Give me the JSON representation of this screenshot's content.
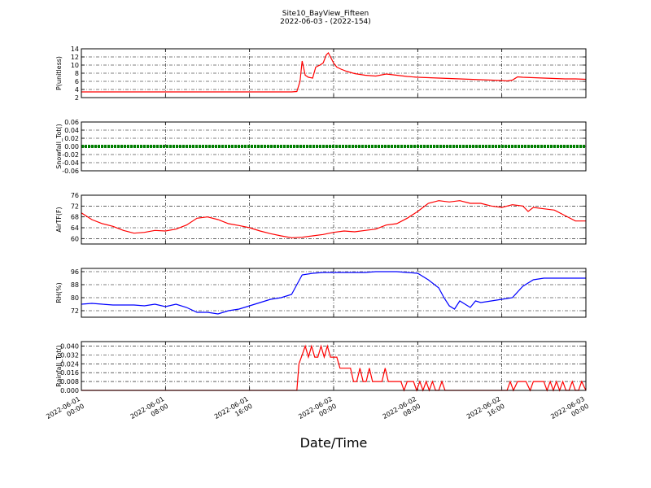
{
  "figure": {
    "title": "Site10_BayView_Fifteen",
    "subtitle": "2022-06-03 - (2022-154)",
    "xlabel": "Date/Time"
  },
  "chart_data": [
    {
      "type": "line",
      "ylabel": "P(unitless)",
      "color": "#ff0000",
      "ylim": [
        2,
        14
      ],
      "yticks": [
        "2",
        "4",
        "6",
        "8",
        "10",
        "12",
        "14"
      ],
      "xlim_hours": [
        0,
        48
      ],
      "x_hours": [
        0,
        10,
        20,
        20.5,
        20.8,
        21.0,
        21.3,
        21.6,
        22.0,
        22.3,
        22.7,
        23.0,
        23.3,
        23.5,
        23.8,
        24.0,
        24.3,
        24.7,
        25.2,
        26,
        27,
        28,
        29,
        30,
        31,
        32,
        33,
        34,
        35,
        36,
        37,
        38,
        39,
        40,
        40.5,
        41.0,
        41.5,
        42,
        43,
        44,
        45,
        46,
        47,
        48
      ],
      "y": [
        3.4,
        3.4,
        3.4,
        3.5,
        6.0,
        11.0,
        7.5,
        7.0,
        6.8,
        9.5,
        10.0,
        10.5,
        12.5,
        13.0,
        11.5,
        10.5,
        9.5,
        9.0,
        8.5,
        7.9,
        7.5,
        7.3,
        7.8,
        7.5,
        7.2,
        7.0,
        6.9,
        6.8,
        6.7,
        6.6,
        6.5,
        6.4,
        6.3,
        6.2,
        6.1,
        6.3,
        7.1,
        7.0,
        6.9,
        6.8,
        6.7,
        6.6,
        6.6,
        6.5
      ]
    },
    {
      "type": "line",
      "ylabel": "Snowfall_Tot()",
      "color": "#008000",
      "ylim": [
        -0.06,
        0.06
      ],
      "yticks": [
        "-0.06",
        "-0.04",
        "-0.02",
        "0.00",
        "0.02",
        "0.04",
        "0.06"
      ],
      "xlim_hours": [
        0,
        48
      ],
      "x_hours": [
        0,
        48
      ],
      "y": [
        0,
        0
      ]
    },
    {
      "type": "line",
      "ylabel": "AirTF(F)",
      "color": "#ff0000",
      "ylim": [
        58,
        76
      ],
      "yticks": [
        "60",
        "64",
        "68",
        "72",
        "76"
      ],
      "xlim_hours": [
        0,
        48
      ],
      "x_hours": [
        0,
        1,
        2,
        3,
        4,
        5,
        6,
        7,
        8,
        9,
        10,
        11,
        12,
        13,
        14,
        15,
        16,
        17,
        18,
        19,
        20,
        21,
        22,
        23,
        24,
        25,
        26,
        27,
        28,
        29,
        30,
        31,
        32,
        33,
        34,
        35,
        36,
        37,
        38,
        39,
        40,
        41,
        42,
        42.5,
        43,
        44,
        45,
        46,
        47,
        48
      ],
      "y": [
        69.5,
        67,
        65.5,
        64.5,
        63,
        62,
        62.3,
        63,
        62.8,
        63.5,
        65,
        67.5,
        68,
        67,
        65.5,
        64.8,
        64,
        62.8,
        61.8,
        61,
        60.3,
        60.5,
        61,
        61.5,
        62.3,
        62.8,
        62.5,
        63,
        63.5,
        65,
        65.5,
        67.5,
        70,
        73,
        74,
        73.5,
        74,
        73,
        73,
        72,
        71.5,
        72.5,
        72,
        70,
        71.5,
        71,
        70.5,
        68.5,
        66.5,
        66.5
      ]
    },
    {
      "type": "line",
      "ylabel": "RH(%)",
      "color": "#0000ff",
      "ylim": [
        68,
        98
      ],
      "yticks": [
        "72",
        "80",
        "88",
        "96"
      ],
      "xlim_hours": [
        0,
        48
      ],
      "x_hours": [
        0,
        1,
        2,
        3,
        4,
        5,
        6,
        7,
        8,
        9,
        10,
        11,
        12,
        13,
        14,
        15,
        16,
        17,
        18,
        19,
        20,
        20.5,
        21,
        22,
        23,
        24,
        25,
        26,
        27,
        28,
        29,
        30,
        31,
        32,
        33,
        34,
        34.5,
        35,
        35.5,
        36,
        36.5,
        37,
        37.5,
        38,
        39,
        40,
        41,
        42,
        43,
        44,
        45,
        46,
        47,
        48
      ],
      "y": [
        76,
        76.5,
        76,
        75.5,
        75.5,
        75.5,
        75,
        76,
        74.5,
        76,
        74,
        71,
        71,
        70,
        72,
        73,
        75,
        77,
        79,
        80,
        82,
        88,
        94,
        95,
        95.5,
        95.5,
        95.5,
        95.5,
        95.5,
        96,
        96,
        96,
        95.5,
        95,
        91,
        86,
        80,
        75,
        73,
        78,
        76,
        74,
        78,
        77,
        78,
        79,
        80,
        87,
        91,
        92,
        92,
        92,
        92,
        92
      ]
    },
    {
      "type": "line",
      "ylabel": "Rainfall_Tot()",
      "color": "#ff0000",
      "ylim": [
        0,
        0.044
      ],
      "yticks": [
        "0.000",
        "0.008",
        "0.016",
        "0.024",
        "0.032",
        "0.040"
      ],
      "xlim_hours": [
        0,
        48
      ],
      "x_hours": [
        0,
        20.5,
        20.7,
        21.0,
        21.3,
        21.6,
        21.9,
        22.2,
        22.5,
        22.8,
        23.1,
        23.4,
        23.7,
        24.0,
        24.3,
        24.6,
        25.0,
        25.3,
        25.6,
        25.9,
        26.2,
        26.5,
        26.8,
        27.1,
        27.4,
        27.7,
        28.0,
        28.3,
        28.6,
        28.9,
        29.2,
        29.5,
        29.8,
        30.1,
        30.4,
        30.7,
        31.0,
        31.3,
        31.6,
        31.9,
        32.2,
        32.5,
        32.8,
        33.1,
        33.4,
        33.7,
        34.0,
        34.3,
        34.6,
        34.9,
        35.2,
        40.5,
        40.8,
        41.1,
        41.5,
        42.0,
        42.3,
        42.7,
        43.0,
        43.5,
        44.0,
        44.3,
        44.6,
        44.9,
        45.2,
        45.5,
        45.8,
        46.1,
        46.4,
        46.7,
        47.0,
        47.3,
        47.6,
        48
      ],
      "y": [
        0,
        0,
        0.024,
        0.032,
        0.04,
        0.03,
        0.04,
        0.03,
        0.03,
        0.04,
        0.03,
        0.04,
        0.03,
        0.03,
        0.03,
        0.02,
        0.02,
        0.02,
        0.02,
        0.008,
        0.008,
        0.02,
        0.008,
        0.008,
        0.02,
        0.008,
        0.008,
        0.008,
        0.008,
        0.02,
        0.008,
        0.008,
        0.008,
        0.008,
        0.008,
        0,
        0.008,
        0.008,
        0.008,
        0,
        0.008,
        0,
        0.008,
        0,
        0.008,
        0,
        0,
        0.008,
        0,
        0,
        0,
        0,
        0.008,
        0,
        0.008,
        0.008,
        0.008,
        0,
        0.008,
        0.008,
        0.008,
        0,
        0.008,
        0,
        0.008,
        0,
        0.008,
        0,
        0,
        0.008,
        0,
        0,
        0.008,
        0
      ]
    }
  ],
  "x_axis": {
    "tick_hours": [
      0,
      8,
      16,
      24,
      32,
      40,
      48
    ],
    "tick_labels": [
      [
        "2022-06-01",
        "00:00"
      ],
      [
        "2022-06-01",
        "08:00"
      ],
      [
        "2022-06-01",
        "16:00"
      ],
      [
        "2022-06-02",
        "00:00"
      ],
      [
        "2022-06-02",
        "08:00"
      ],
      [
        "2022-06-02",
        "16:00"
      ],
      [
        "2022-06-03",
        "00:00"
      ]
    ]
  }
}
